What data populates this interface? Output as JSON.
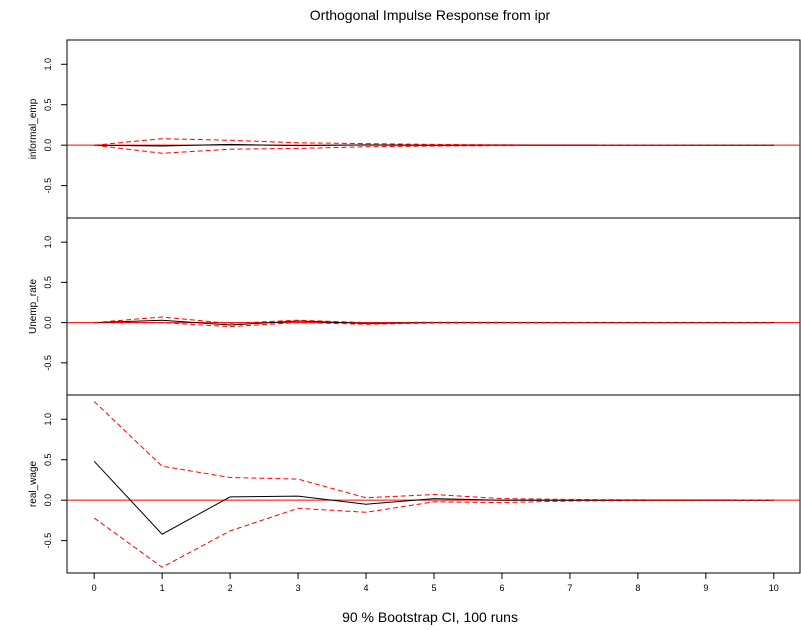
{
  "chart_data": {
    "type": "line",
    "title": "Orthogonal Impulse Response from ipr",
    "subtitle": "90 % Bootstrap CI,  100 runs",
    "x": [
      0,
      1,
      2,
      3,
      4,
      5,
      6,
      7,
      8,
      9,
      10
    ],
    "x_ticks": [
      "0",
      "1",
      "2",
      "3",
      "4",
      "5",
      "6",
      "7",
      "8",
      "9",
      "10"
    ],
    "xlim": [
      -0.4,
      10.4
    ],
    "ylim": [
      -0.9,
      1.3
    ],
    "y_ticks": [
      "-0.5",
      "0.0",
      "0.5",
      "1.0"
    ],
    "y_tick_values": [
      -0.5,
      0.0,
      0.5,
      1.0
    ],
    "zero_line_color": "#ff0000",
    "response_color": "#000000",
    "ci_color": "#ff0000",
    "panels": [
      {
        "ylabel": "informal_emp",
        "series": [
          {
            "values": [
              0.0,
              -0.01,
              0.01,
              -0.005,
              0.003,
              -0.002,
              0.001,
              0.0,
              0.0,
              0.0,
              0.0
            ]
          },
          {
            "values": [
              0.0,
              0.08,
              0.06,
              0.03,
              0.02,
              0.01,
              0.005,
              0.003,
              0.002,
              0.001,
              0.001
            ]
          },
          {
            "values": [
              0.0,
              -0.1,
              -0.05,
              -0.04,
              -0.02,
              -0.01,
              -0.005,
              -0.003,
              -0.002,
              -0.001,
              -0.001
            ]
          }
        ]
      },
      {
        "ylabel": "Unemp_rate",
        "series": [
          {
            "values": [
              0.0,
              0.03,
              -0.03,
              0.02,
              -0.01,
              0.0,
              0.0,
              0.0,
              0.0,
              0.0,
              0.0
            ]
          },
          {
            "values": [
              0.0,
              0.07,
              -0.01,
              0.03,
              0.0,
              0.005,
              0.003,
              0.001,
              0.0,
              0.0,
              0.0
            ]
          },
          {
            "values": [
              0.0,
              0.0,
              -0.05,
              0.0,
              -0.02,
              -0.005,
              -0.003,
              -0.001,
              0.0,
              0.0,
              0.0
            ]
          }
        ]
      },
      {
        "ylabel": "real_wage",
        "series": [
          {
            "values": [
              0.48,
              -0.42,
              0.04,
              0.05,
              -0.05,
              0.02,
              0.0,
              0.0,
              0.0,
              0.0,
              0.0
            ]
          },
          {
            "values": [
              1.22,
              0.42,
              0.28,
              0.26,
              0.03,
              0.07,
              0.02,
              0.01,
              0.005,
              0.003,
              0.002
            ]
          },
          {
            "values": [
              -0.22,
              -0.83,
              -0.38,
              -0.1,
              -0.15,
              -0.02,
              -0.03,
              -0.01,
              -0.005,
              -0.003,
              -0.002
            ]
          }
        ]
      }
    ]
  }
}
